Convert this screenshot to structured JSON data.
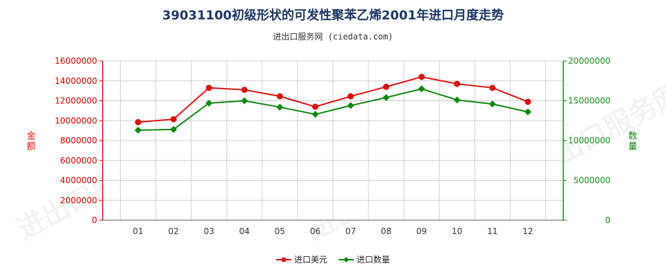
{
  "chart_data": {
    "type": "line",
    "title": "39031100初级形状的可发性聚苯乙烯2001年进口月度走势",
    "subtitle": "进出口服务网 (ciedata.com)",
    "categories": [
      "01",
      "02",
      "03",
      "04",
      "05",
      "06",
      "07",
      "08",
      "09",
      "10",
      "11",
      "12"
    ],
    "y_left": {
      "label": "金额",
      "ylim": [
        0,
        16000000
      ],
      "ticks": [
        "0",
        "2000000",
        "4000000",
        "6000000",
        "8000000",
        "10000000",
        "12000000",
        "14000000",
        "16000000"
      ],
      "color": "#dd1111"
    },
    "y_right": {
      "label": "数量",
      "ylim": [
        0,
        20000000
      ],
      "ticks": [
        "0",
        "5000000",
        "10000000",
        "15000000",
        "20000000"
      ],
      "color": "#118811"
    },
    "series": [
      {
        "name": "进口美元",
        "axis": "left",
        "color": "#dd1111",
        "marker": "circle",
        "values": [
          9850000,
          10150000,
          13300000,
          13100000,
          12450000,
          11400000,
          12450000,
          13400000,
          14400000,
          13700000,
          13300000,
          11900000
        ]
      },
      {
        "name": "进口数量",
        "axis": "right",
        "color": "#118811",
        "marker": "diamond",
        "values": [
          11300000,
          11400000,
          14700000,
          15000000,
          14200000,
          13300000,
          14400000,
          15400000,
          16500000,
          15100000,
          14600000,
          13600000
        ]
      }
    ],
    "grid": true,
    "legend": "bottom-center"
  },
  "watermark": "进出口服务网"
}
